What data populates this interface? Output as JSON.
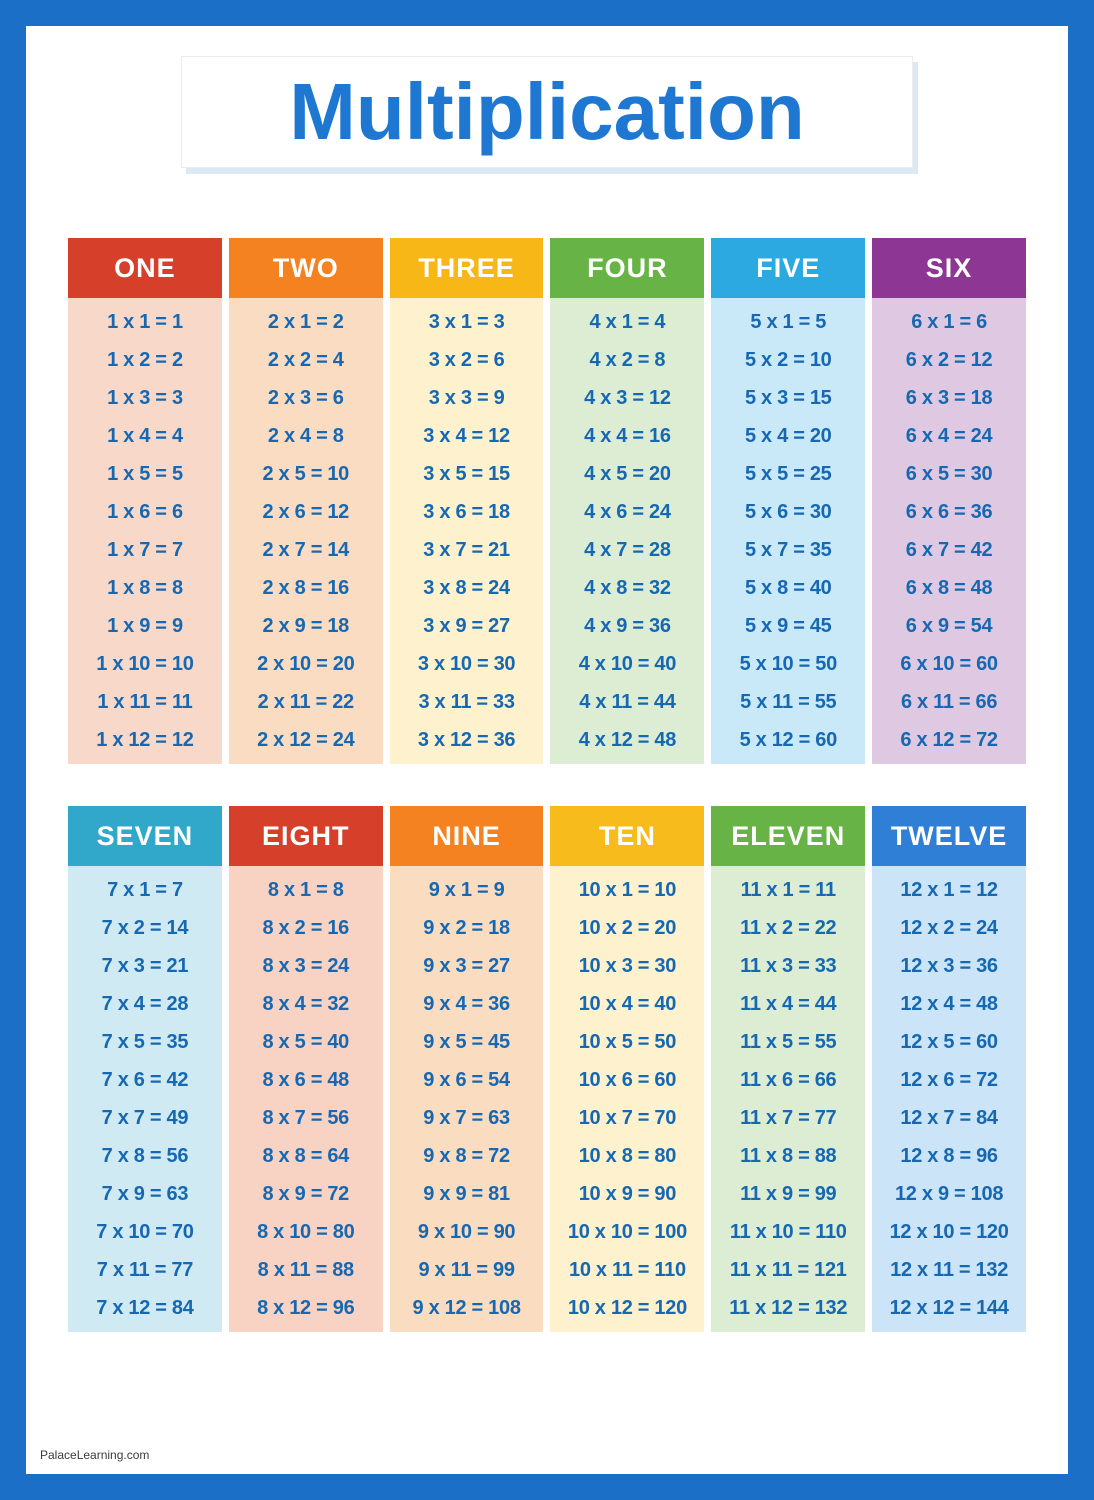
{
  "title": "Multiplication",
  "footer": "PalaceLearning.com",
  "colors": {
    "frame": "#1b6fc6",
    "title_text": "#1e78d2",
    "cell_text": "#1668b2",
    "header_text": "#ffffff"
  },
  "groups": [
    {
      "tables": [
        {
          "label": "ONE",
          "header_color": "#d6402a",
          "body_color": "#f8d9c9",
          "rows": [
            "1 x 1 = 1",
            "1 x 2 = 2",
            "1 x 3 = 3",
            "1 x 4 = 4",
            "1 x 5 = 5",
            "1 x 6 = 6",
            "1 x 7 = 7",
            "1 x 8 = 8",
            "1 x 9 = 9",
            "1 x 10 = 10",
            "1 x 11 = 11",
            "1 x 12 = 12"
          ]
        },
        {
          "label": "TWO",
          "header_color": "#f58220",
          "body_color": "#fadcc2",
          "rows": [
            "2 x 1 = 2",
            "2 x 2 = 4",
            "2 x 3 = 6",
            "2 x 4 = 8",
            "2 x 5 = 10",
            "2 x 6 = 12",
            "2 x 7 = 14",
            "2 x 8 = 16",
            "2 x 9 = 18",
            "2 x 10 = 20",
            "2 x 11 = 22",
            "2 x 12 = 24"
          ]
        },
        {
          "label": "THREE",
          "header_color": "#f7b817",
          "body_color": "#fdf2cd",
          "rows": [
            "3 x 1 = 3",
            "3 x 2 = 6",
            "3 x 3 = 9",
            "3 x 4 = 12",
            "3 x 5 = 15",
            "3 x 6 = 18",
            "3 x 7 = 21",
            "3 x 8 = 24",
            "3 x 9 = 27",
            "3 x 10 = 30",
            "3 x 11 = 33",
            "3 x 12 = 36"
          ]
        },
        {
          "label": "FOUR",
          "header_color": "#67b346",
          "body_color": "#dcedd4",
          "rows": [
            "4 x 1 = 4",
            "4 x 2 = 8",
            "4 x 3 = 12",
            "4 x 4 = 16",
            "4 x 5 = 20",
            "4 x 6 = 24",
            "4 x 7 = 28",
            "4 x 8 = 32",
            "4 x 9 = 36",
            "4 x 10 = 40",
            "4 x 11 = 44",
            "4 x 12 = 48"
          ]
        },
        {
          "label": "FIVE",
          "header_color": "#2ba9e0",
          "body_color": "#c9e9f9",
          "rows": [
            "5 x 1 = 5",
            "5 x 2 = 10",
            "5 x 3 = 15",
            "5 x 4 = 20",
            "5 x 5 = 25",
            "5 x 6 = 30",
            "5 x 7 = 35",
            "5 x 8 = 40",
            "5 x 9 = 45",
            "5 x 10 = 50",
            "5 x 11 = 55",
            "5 x 12 = 60"
          ]
        },
        {
          "label": "SIX",
          "header_color": "#8e3694",
          "body_color": "#dfc9e2",
          "rows": [
            "6 x 1 = 6",
            "6 x 2 = 12",
            "6 x 3 = 18",
            "6 x 4 = 24",
            "6 x 5 = 30",
            "6 x 6 = 36",
            "6 x 7 = 42",
            "6 x 8 = 48",
            "6 x 9 = 54",
            "6 x 10 = 60",
            "6 x 11 = 66",
            "6 x 12 = 72"
          ]
        }
      ]
    },
    {
      "tables": [
        {
          "label": "SEVEN",
          "header_color": "#31a8c9",
          "body_color": "#d0eaf3",
          "rows": [
            "7 x 1 = 7",
            "7 x 2 = 14",
            "7 x 3 = 21",
            "7 x 4 = 28",
            "7 x 5 = 35",
            "7 x 6 = 42",
            "7 x 7 = 49",
            "7 x 8 = 56",
            "7 x 9 = 63",
            "7 x 10 = 70",
            "7 x 11 = 77",
            "7 x 12 = 84"
          ]
        },
        {
          "label": "EIGHT",
          "header_color": "#d6402a",
          "body_color": "#f8d2c2",
          "rows": [
            "8 x 1 = 8",
            "8 x 2 = 16",
            "8 x 3 = 24",
            "8 x 4 = 32",
            "8 x 5 = 40",
            "8 x 6 = 48",
            "8 x 7 = 56",
            "8 x 8 = 64",
            "8 x 9 = 72",
            "8 x 10 = 80",
            "8 x 11 = 88",
            "8 x 12 = 96"
          ]
        },
        {
          "label": "NINE",
          "header_color": "#f58220",
          "body_color": "#fadcc0",
          "rows": [
            "9 x 1 = 9",
            "9 x 2 = 18",
            "9 x 3 = 27",
            "9 x 4 = 36",
            "9 x 5 = 45",
            "9 x 6 = 54",
            "9 x 7 = 63",
            "9 x 8 = 72",
            "9 x 9 = 81",
            "9 x 10 = 90",
            "9 x 11 = 99",
            "9 x 12 = 108"
          ]
        },
        {
          "label": "TEN",
          "header_color": "#f7bb1c",
          "body_color": "#fdf2cd",
          "rows": [
            "10 x 1 = 10",
            "10 x 2 = 20",
            "10 x 3 = 30",
            "10 x 4 = 40",
            "10 x 5 = 50",
            "10 x 6 = 60",
            "10 x 7 = 70",
            "10 x 8 = 80",
            "10 x 9 = 90",
            "10 x 10 = 100",
            "10 x 11 = 110",
            "10 x 12 = 120"
          ]
        },
        {
          "label": "ELEVEN",
          "header_color": "#67b346",
          "body_color": "#dcedd4",
          "rows": [
            "11 x 1 = 11",
            "11 x 2 = 22",
            "11 x 3 = 33",
            "11 x 4 = 44",
            "11 x 5 = 55",
            "11 x 6 = 66",
            "11 x 7 = 77",
            "11 x 8 = 88",
            "11 x 9 = 99",
            "11 x 10 = 110",
            "11 x 11 = 121",
            "11 x 12 = 132"
          ]
        },
        {
          "label": "TWELVE",
          "header_color": "#2f7fd6",
          "body_color": "#cbe4f7",
          "rows": [
            "12 x 1 = 12",
            "12 x 2 = 24",
            "12 x 3 = 36",
            "12 x 4 = 48",
            "12 x 5 = 60",
            "12 x 6 = 72",
            "12 x 7 = 84",
            "12 x 8 = 96",
            "12 x 9 = 108",
            "12 x 10 = 120",
            "12 x 11 = 132",
            "12 x 12 = 144"
          ]
        }
      ]
    }
  ]
}
